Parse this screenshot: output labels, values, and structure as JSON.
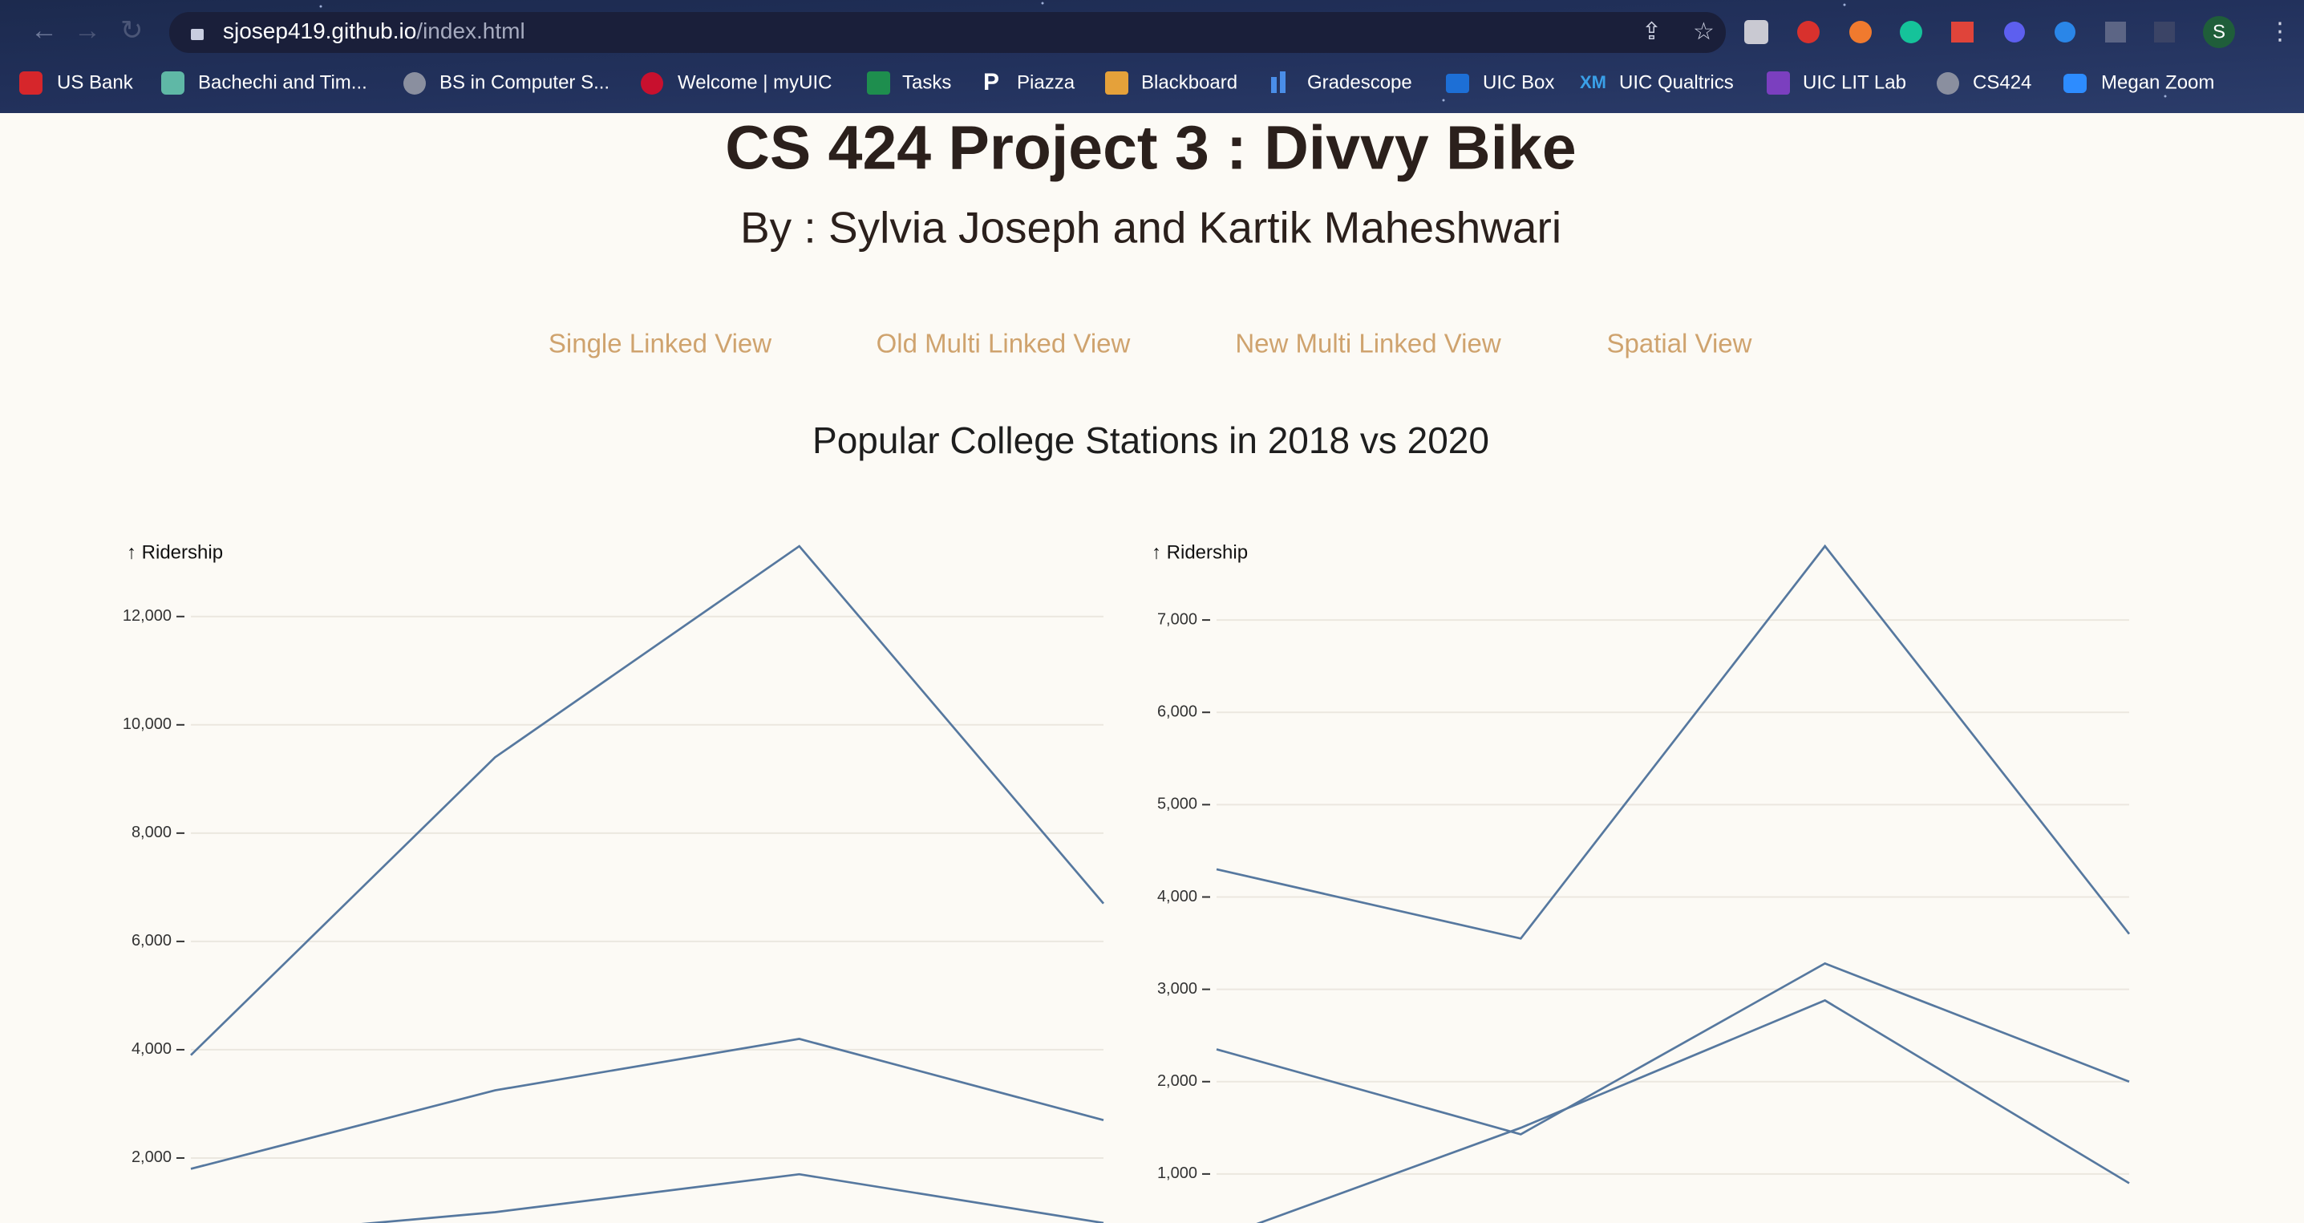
{
  "browser": {
    "url_host": "sjosep419.github.io",
    "url_path": "/index.html",
    "profile": "S",
    "bookmarks": [
      "US Bank",
      "Bachechi and Tim...",
      "BS in Computer S...",
      "Welcome | myUIC",
      "Tasks",
      "Piazza",
      "Blackboard",
      "Gradescope",
      "UIC Box",
      "UIC Qualtrics",
      "UIC LIT Lab",
      "CS424",
      "Megan Zoom"
    ]
  },
  "header": {
    "title": "CS 424 Project 3 : Divvy Bike",
    "subtitle": "By : Sylvia Joseph and Kartik Maheshwari"
  },
  "nav": [
    "Single Linked View",
    "Old Multi Linked View",
    "New Multi Linked View",
    "Spatial View"
  ],
  "chart_heading": "Popular College Stations in 2018 vs 2020",
  "chart_data": [
    {
      "type": "line",
      "y_label": "↑ Ridership",
      "categories": [
        null,
        null,
        null,
        null
      ],
      "ylim": [
        0,
        13300
      ],
      "grid": true,
      "yticks": [
        {
          "value": 2000,
          "label": "2,000"
        },
        {
          "value": 4000,
          "label": "4,000"
        },
        {
          "value": 6000,
          "label": "6,000"
        },
        {
          "value": 8000,
          "label": "8,000"
        },
        {
          "value": 10000,
          "label": "10,000"
        },
        {
          "value": 12000,
          "label": "12,000"
        }
      ],
      "series": [
        {
          "color": "#56789f",
          "values": [
            3900,
            9400,
            13300,
            6700
          ]
        },
        {
          "color": "#56789f",
          "values": [
            1800,
            3250,
            4200,
            2700
          ]
        },
        {
          "color": "#56789f",
          "values": [
            500,
            1000,
            1700,
            800
          ]
        }
      ]
    },
    {
      "type": "line",
      "y_label": "↑ Ridership",
      "categories": [
        null,
        null,
        null,
        null
      ],
      "ylim": [
        0,
        7800
      ],
      "grid": true,
      "yticks": [
        {
          "value": 1000,
          "label": "1,000"
        },
        {
          "value": 2000,
          "label": "2,000"
        },
        {
          "value": 3000,
          "label": "3,000"
        },
        {
          "value": 4000,
          "label": "4,000"
        },
        {
          "value": 5000,
          "label": "5,000"
        },
        {
          "value": 6000,
          "label": "6,000"
        },
        {
          "value": 7000,
          "label": "7,000"
        }
      ],
      "series": [
        {
          "color": "#56789f",
          "values": [
            4300,
            3550,
            7800,
            3600
          ]
        },
        {
          "color": "#56789f",
          "values": [
            2350,
            1430,
            3280,
            2000
          ]
        },
        {
          "color": "#56789f",
          "values": [
            300,
            1500,
            2880,
            900
          ]
        }
      ]
    }
  ]
}
